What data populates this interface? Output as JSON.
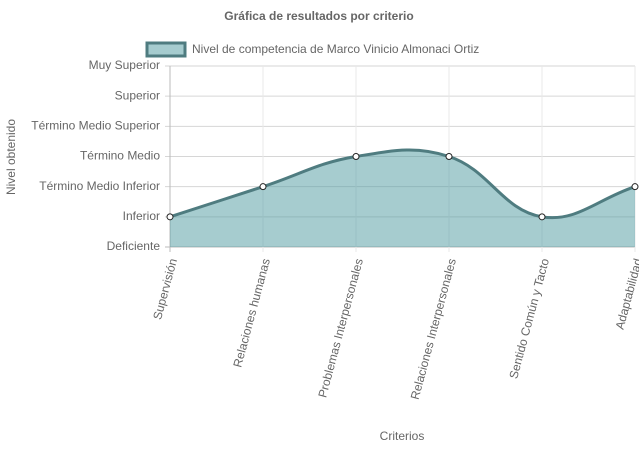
{
  "chart_data": {
    "type": "line",
    "title": "Gráfica de resultados por criterio",
    "x_label": "Criterios",
    "y_label": "Nivel obtenido",
    "categories": [
      "Supervisión",
      "Relaciones humanas",
      "Problemas Interpersonales",
      "Relaciones Interpersonales",
      "Sentido Común y Tacto",
      "Adaptabilidad"
    ],
    "series": [
      {
        "name": "Nivel de competencia de Marco Vinicio Almonaci Ortiz",
        "color": "#4f7c80",
        "fill": "rgba(77,153,160,0.5)",
        "values": [
          1,
          2,
          3,
          3,
          1,
          2
        ]
      }
    ],
    "ylim": [
      0,
      6
    ],
    "yticks": [
      {
        "value": 0,
        "label": "Deficiente"
      },
      {
        "value": 1,
        "label": "Inferior"
      },
      {
        "value": 2,
        "label": "Término Medio Inferior"
      },
      {
        "value": 3,
        "label": "Término Medio"
      },
      {
        "value": 4,
        "label": "Término Medio Superior"
      },
      {
        "value": 5,
        "label": "Superior"
      },
      {
        "value": 6,
        "label": "Muy Superior"
      }
    ],
    "grid": true,
    "legend": "top"
  }
}
